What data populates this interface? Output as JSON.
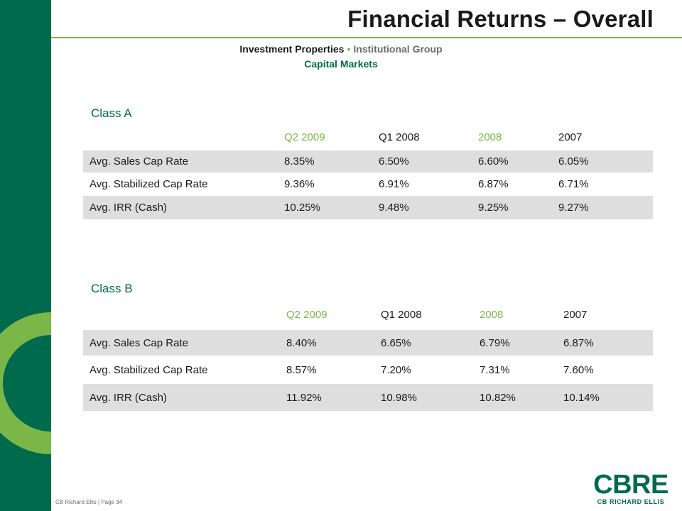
{
  "header": {
    "title": "Financial Returns – Overall",
    "subtitle_part1": "Investment Properties",
    "subtitle_separator": "•",
    "subtitle_part2": "Institutional Group",
    "subtitle_line2": "Capital Markets"
  },
  "colors": {
    "brand_green": "#006a4d",
    "accent_green": "#7ab648",
    "row_shade": "#dedede"
  },
  "tables": [
    {
      "section_title": "Class A",
      "columns": [
        "Q2 2009",
        "Q1 2008",
        "2008",
        "2007"
      ],
      "rows": [
        {
          "label": "Avg. Sales Cap Rate",
          "values": [
            "8.35%",
            "6.50%",
            "6.60%",
            "6.05%"
          ]
        },
        {
          "label": "Avg. Stabilized Cap Rate",
          "values": [
            "9.36%",
            "6.91%",
            "6.87%",
            "6.71%"
          ]
        },
        {
          "label": "Avg. IRR (Cash)",
          "values": [
            "10.25%",
            "9.48%",
            "9.25%",
            "9.27%"
          ]
        }
      ]
    },
    {
      "section_title": "Class B",
      "columns": [
        "Q2 2009",
        "Q1 2008",
        "2008",
        "2007"
      ],
      "rows": [
        {
          "label": "Avg. Sales Cap Rate",
          "values": [
            "8.40%",
            "6.65%",
            "6.79%",
            "6.87%"
          ]
        },
        {
          "label": "Avg. Stabilized Cap Rate",
          "values": [
            "8.57%",
            "7.20%",
            "7.31%",
            "7.60%"
          ]
        },
        {
          "label": "Avg. IRR (Cash)",
          "values": [
            "11.92%",
            "10.98%",
            "10.82%",
            "10.14%"
          ]
        }
      ]
    }
  ],
  "footer": {
    "text": "CB Richard Ellis | Page 34"
  },
  "logo": {
    "main": "CBRE",
    "sub": "CB RICHARD ELLIS"
  }
}
